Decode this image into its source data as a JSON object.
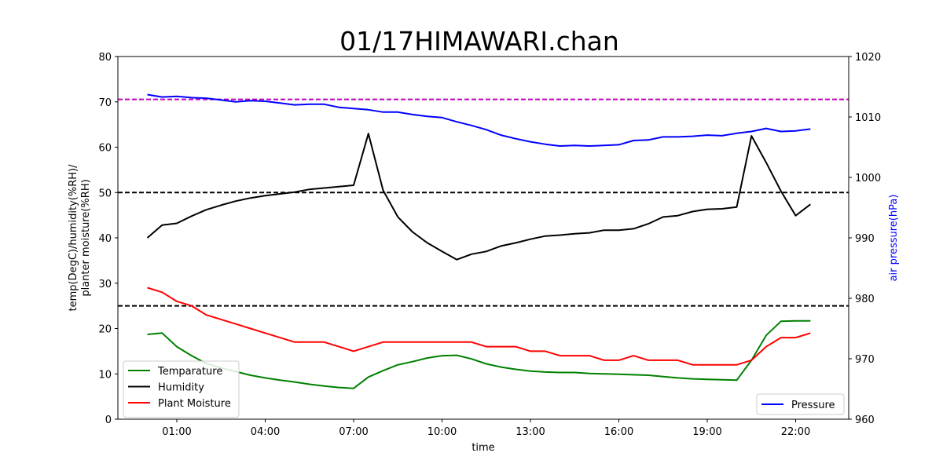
{
  "chart_data": {
    "type": "line",
    "title": "01/17HIMAWARI.chan",
    "xlabel": "time",
    "ylabel_line1": "temp(DegC)/humidity(%RH)/",
    "ylabel_line2": "planter moisture(%RH)",
    "ylabel_right": "air pressure(hPa)",
    "xlim": [
      -1.0,
      23.8
    ],
    "ylim": [
      0,
      80
    ],
    "ylim_right": [
      960,
      1020
    ],
    "x_ticks": [
      {
        "value": 1,
        "label": "01:00"
      },
      {
        "value": 4,
        "label": "04:00"
      },
      {
        "value": 7,
        "label": "07:00"
      },
      {
        "value": 10,
        "label": "10:00"
      },
      {
        "value": 13,
        "label": "13:00"
      },
      {
        "value": 16,
        "label": "16:00"
      },
      {
        "value": 19,
        "label": "19:00"
      },
      {
        "value": 22,
        "label": "22:00"
      }
    ],
    "y_ticks": [
      0,
      10,
      20,
      30,
      40,
      50,
      60,
      70,
      80
    ],
    "y_ticks_right": [
      960,
      970,
      980,
      990,
      1000,
      1010,
      1020
    ],
    "hlines": [
      {
        "axis": "right",
        "value": 1012.9,
        "color": "#bf00bf"
      },
      {
        "axis": "left",
        "value": 50,
        "color": "#000000"
      },
      {
        "axis": "left",
        "value": 25,
        "color": "#000000"
      }
    ],
    "x": [
      0,
      0.5,
      1,
      1.5,
      2,
      2.5,
      3,
      3.5,
      4,
      4.5,
      5,
      5.5,
      6,
      6.5,
      7,
      7.5,
      8,
      8.5,
      9,
      9.5,
      10,
      10.5,
      11,
      11.5,
      12,
      12.5,
      13,
      13.5,
      14,
      14.5,
      15,
      15.5,
      16,
      16.5,
      17,
      17.5,
      18,
      18.5,
      19,
      19.5,
      20,
      20.5,
      21,
      21.5,
      22,
      22.5
    ],
    "series": [
      {
        "name": "Temparature",
        "axis": "left",
        "color": "#008000",
        "values": [
          18.7,
          19.0,
          16.0,
          14.0,
          12.3,
          11.3,
          10.5,
          9.7,
          9.1,
          8.6,
          8.2,
          7.7,
          7.3,
          7.0,
          6.8,
          9.3,
          10.7,
          12.0,
          12.7,
          13.5,
          14.0,
          14.1,
          13.3,
          12.2,
          11.5,
          11.0,
          10.6,
          10.4,
          10.3,
          10.3,
          10.1,
          10.0,
          9.9,
          9.8,
          9.7,
          9.4,
          9.1,
          8.9,
          8.8,
          8.7,
          8.6,
          13.0,
          18.5,
          21.6,
          21.7,
          21.7
        ]
      },
      {
        "name": "Humidity",
        "axis": "left",
        "color": "#000000",
        "values": [
          40.0,
          42.8,
          43.2,
          44.8,
          46.2,
          47.2,
          48.1,
          48.8,
          49.3,
          49.7,
          50.1,
          50.7,
          51.0,
          51.3,
          51.6,
          63.0,
          50.5,
          44.6,
          41.3,
          38.9,
          37.0,
          35.2,
          36.4,
          37.0,
          38.2,
          38.9,
          39.7,
          40.4,
          40.6,
          40.9,
          41.1,
          41.7,
          41.7,
          42.0,
          43.1,
          44.6,
          44.9,
          45.8,
          46.3,
          46.4,
          46.8,
          62.5,
          56.6,
          50.3,
          44.9,
          47.4
        ]
      },
      {
        "name": "Plant Moisture",
        "axis": "left",
        "color": "#ff0000",
        "values": [
          29,
          28,
          26,
          25,
          23,
          22,
          21,
          20,
          19,
          18,
          17,
          17,
          17,
          16,
          15,
          16,
          17,
          17,
          17,
          17,
          17,
          17,
          17,
          16,
          16,
          16,
          15,
          15,
          14,
          14,
          14,
          13,
          13,
          14,
          13,
          13,
          13,
          12,
          12,
          12,
          12,
          13,
          16,
          18,
          18,
          19
        ]
      },
      {
        "name": "Pressure",
        "axis": "right",
        "color": "#0000ff",
        "values": [
          1013.7,
          1013.3,
          1013.4,
          1013.2,
          1013.1,
          1012.8,
          1012.5,
          1012.7,
          1012.6,
          1012.3,
          1012.0,
          1012.1,
          1012.1,
          1011.6,
          1011.4,
          1011.2,
          1010.8,
          1010.8,
          1010.4,
          1010.1,
          1009.9,
          1009.2,
          1008.6,
          1007.9,
          1007.0,
          1006.4,
          1005.9,
          1005.5,
          1005.2,
          1005.3,
          1005.2,
          1005.3,
          1005.4,
          1006.1,
          1006.2,
          1006.7,
          1006.7,
          1006.8,
          1007.0,
          1006.9,
          1007.3,
          1007.6,
          1008.1,
          1007.6,
          1007.7,
          1008.0
        ]
      }
    ],
    "legend_left": {
      "placement": "lower-left",
      "items": [
        "Temparature",
        "Humidity",
        "Plant Moisture"
      ]
    },
    "legend_right": {
      "placement": "lower-right",
      "items": [
        "Pressure"
      ]
    },
    "grid": false
  }
}
